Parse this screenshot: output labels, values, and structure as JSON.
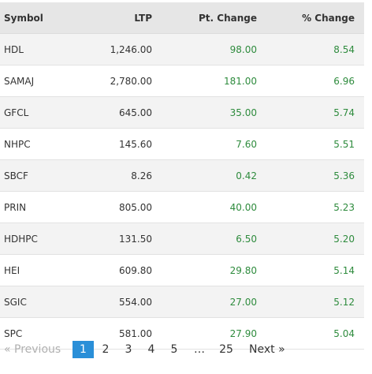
{
  "table": {
    "headers": [
      "Symbol",
      "LTP",
      "Pt. Change",
      "% Change"
    ],
    "rows": [
      {
        "symbol": "HDL",
        "ltp": "1,246.00",
        "pt_change": "98.00",
        "pct_change": "8.54"
      },
      {
        "symbol": "SAMAJ",
        "ltp": "2,780.00",
        "pt_change": "181.00",
        "pct_change": "6.96"
      },
      {
        "symbol": "GFCL",
        "ltp": "645.00",
        "pt_change": "35.00",
        "pct_change": "5.74"
      },
      {
        "symbol": "NHPC",
        "ltp": "145.60",
        "pt_change": "7.60",
        "pct_change": "5.51"
      },
      {
        "symbol": "SBCF",
        "ltp": "8.26",
        "pt_change": "0.42",
        "pct_change": "5.36"
      },
      {
        "symbol": "PRIN",
        "ltp": "805.00",
        "pt_change": "40.00",
        "pct_change": "5.23"
      },
      {
        "symbol": "HDHPC",
        "ltp": "131.50",
        "pt_change": "6.50",
        "pct_change": "5.20"
      },
      {
        "symbol": "HEI",
        "ltp": "609.80",
        "pt_change": "29.80",
        "pct_change": "5.14"
      },
      {
        "symbol": "SGIC",
        "ltp": "554.00",
        "pt_change": "27.00",
        "pct_change": "5.12"
      },
      {
        "symbol": "SPC",
        "ltp": "581.00",
        "pt_change": "27.90",
        "pct_change": "5.04"
      }
    ],
    "positive_color": "#2e8b3d"
  },
  "pagination": {
    "previous": "« Previous",
    "pages": [
      "1",
      "2",
      "3",
      "4",
      "5",
      "…",
      "25"
    ],
    "current": "1",
    "next": "Next »",
    "active_color": "#2a8fd8"
  }
}
